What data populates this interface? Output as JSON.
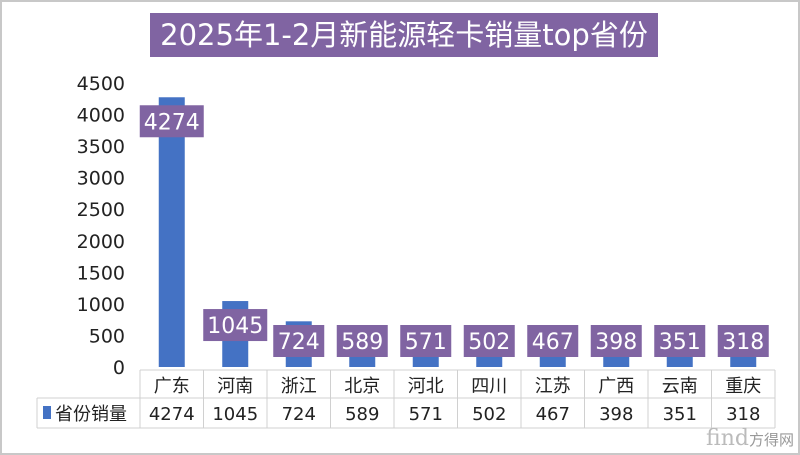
{
  "chart_data": {
    "type": "bar",
    "title": "2025年1-2月新能源轻卡销量top省份",
    "categories": [
      "广东",
      "河南",
      "浙江",
      "北京",
      "河北",
      "四川",
      "江苏",
      "广西",
      "云南",
      "重庆"
    ],
    "series": [
      {
        "name": "省份销量",
        "values": [
          4274,
          1045,
          724,
          589,
          571,
          502,
          467,
          398,
          351,
          318
        ]
      }
    ],
    "ylim": [
      0,
      4500
    ],
    "yticks": [
      0,
      500,
      1000,
      1500,
      2000,
      2500,
      3000,
      3500,
      4000,
      4500
    ],
    "xlabel": "",
    "ylabel": "",
    "legend": "data-table",
    "grid": false
  },
  "colors": {
    "bar": "#4472c4",
    "label_bg": "#8064a2",
    "title_bg": "#8064a2"
  },
  "watermark": {
    "latin": "find",
    "cjk": "方得网"
  }
}
